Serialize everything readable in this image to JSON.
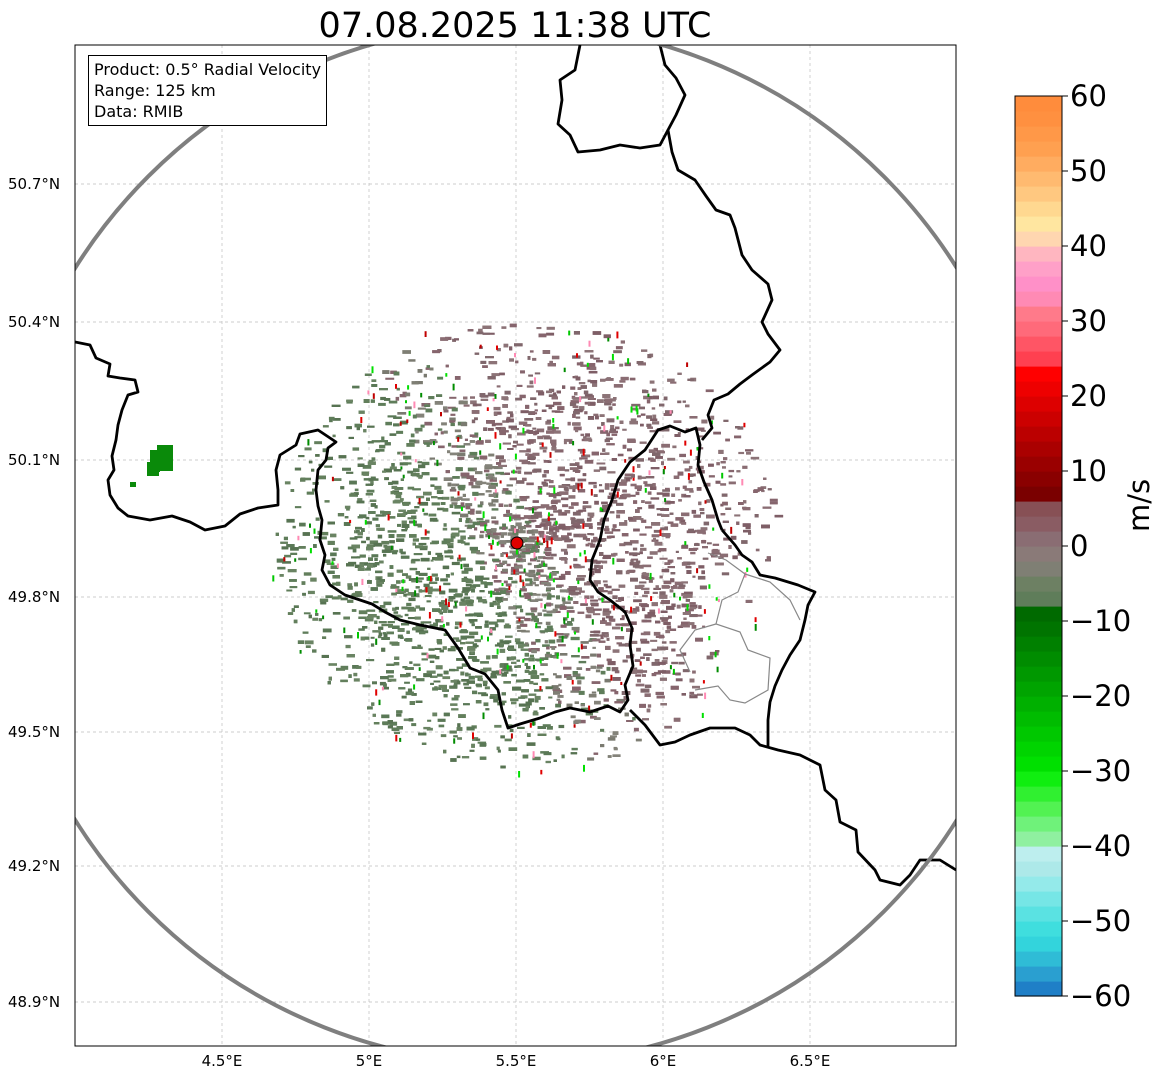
{
  "title": "07.08.2025 11:38 UTC",
  "info_box": {
    "product": "Product: 0.5° Radial Velocity",
    "range": "Range: 125 km",
    "data": "Data: RMIB"
  },
  "axes": {
    "lat_ticks": [
      "50.7°N",
      "50.4°N",
      "50.1°N",
      "49.8°N",
      "49.5°N",
      "49.2°N",
      "48.9°N"
    ],
    "lon_ticks": [
      "4.5°E",
      "5°E",
      "5.5°E",
      "6°E",
      "6.5°E"
    ]
  },
  "radar_site_marker": {
    "color": "#e00000"
  },
  "colorbar": {
    "label": "m/s",
    "ticks": [
      "60",
      "50",
      "40",
      "30",
      "20",
      "10",
      "0",
      "−10",
      "−20",
      "−30",
      "−40",
      "−50",
      "−60"
    ],
    "range": [
      -60,
      60
    ],
    "colors_bottom_to_top": [
      "#1f7fc7",
      "#2a9fd0",
      "#2fbcd6",
      "#33d4dc",
      "#3fdede",
      "#5ae2e2",
      "#76e6e6",
      "#94eaea",
      "#ade9e9",
      "#bdeeee",
      "#8ff0a0",
      "#6ff27a",
      "#52f252",
      "#30f030",
      "#10ee10",
      "#00e000",
      "#00d400",
      "#00c800",
      "#00bc00",
      "#00b000",
      "#00a400",
      "#009800",
      "#008c00",
      "#008000",
      "#007400",
      "#006a00",
      "#5f7d5a",
      "#6d8063",
      "#7f7f74",
      "#8a7a78",
      "#8a6d73",
      "#8a5c63",
      "#875055",
      "#7a0000",
      "#8a0000",
      "#9a0000",
      "#aa0000",
      "#bb0000",
      "#cc0000",
      "#dd0000",
      "#ee0000",
      "#ff0000",
      "#ff4050",
      "#ff5565",
      "#ff6a7a",
      "#ff7a8a",
      "#ff8ab4",
      "#ff90c8",
      "#ffa0c8",
      "#ffb6c0",
      "#ffd6b0",
      "#ffe6a0",
      "#ffd890",
      "#ffc880",
      "#ffba70",
      "#ffac60",
      "#ffa050",
      "#ff9848",
      "#ff9040",
      "#ff8c3c"
    ]
  }
}
